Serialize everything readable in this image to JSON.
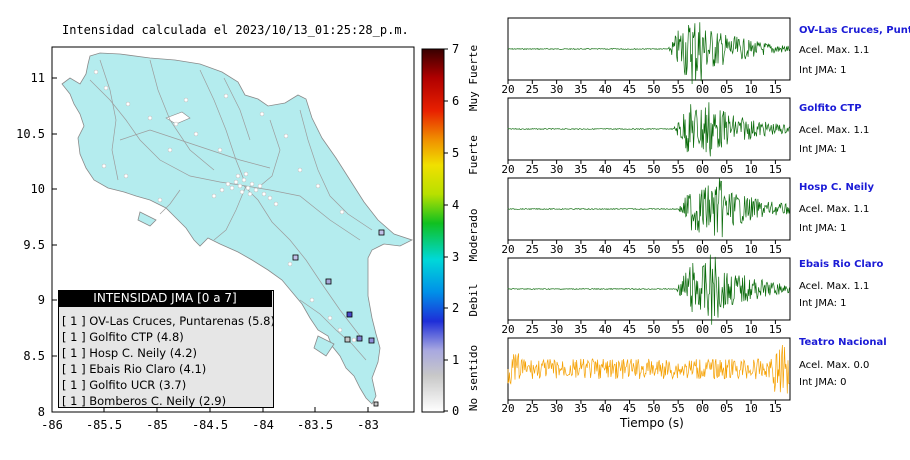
{
  "map": {
    "title": "Intensidad calculada el 2023/10/13_01:25:28_p.m.",
    "y_ticks": [
      "11",
      "10.5",
      "10",
      "9.5",
      "9",
      "8.5",
      "8"
    ],
    "x_ticks": [
      "-86",
      "-85.5",
      "-85",
      "-84.5",
      "-84",
      "-83.5",
      "-83"
    ],
    "land_color": "#b4ecee"
  },
  "colorbar": {
    "ticks": [
      "7",
      "6",
      "5",
      "4",
      "3",
      "2",
      "1",
      "0"
    ],
    "labels": [
      "Muy Fuerte",
      "Fuerte",
      "Moderado",
      "Debil",
      "No sentido"
    ]
  },
  "legend": {
    "title": "INTENSIDAD JMA [0 a 7]",
    "rows": [
      "[ 1 ] OV-Las Cruces, Puntarenas (5.8)",
      "[ 1 ] Golfito CTP (4.8)",
      "[ 1 ] Hosp C. Neily (4.2)",
      "[ 1 ] Ebais Rio Claro (4.1)",
      "[ 1 ] Golfito UCR (3.7)",
      "[ 1 ] Bomberos C. Neily (2.9)"
    ]
  },
  "waveforms": [
    {
      "name": "OV-Las Cruces, Puntar",
      "accel": "Acel. Max. 1.1",
      "jma": "Int JMA: 1",
      "color": "#0a6b0a",
      "ticks": [
        "20",
        "25",
        "30",
        "35",
        "40",
        "45",
        "50",
        "55",
        "00",
        "05",
        "10",
        "15"
      ]
    },
    {
      "name": "Golfito CTP",
      "accel": "Acel. Max. 1.1",
      "jma": "Int JMA: 1",
      "color": "#0a6b0a",
      "ticks": [
        "20",
        "25",
        "30",
        "35",
        "40",
        "45",
        "50",
        "55",
        "00",
        "05",
        "10",
        "15"
      ]
    },
    {
      "name": "Hosp C. Neily",
      "accel": "Acel. Max. 1.1",
      "jma": "Int JMA: 1",
      "color": "#0a6b0a",
      "ticks": [
        "20",
        "25",
        "30",
        "35",
        "40",
        "45",
        "50",
        "55",
        "00",
        "05",
        "10",
        "15"
      ]
    },
    {
      "name": "Ebais Rio Claro",
      "accel": "Acel. Max. 1.1",
      "jma": "Int JMA: 1",
      "color": "#0a6b0a",
      "ticks": [
        "20",
        "25",
        "30",
        "35",
        "40",
        "45",
        "50",
        "55",
        "00",
        "05",
        "10",
        "15"
      ]
    },
    {
      "name": "Teatro Nacional",
      "accel": "Acel. Max. 0.0",
      "jma": "Int JMA: 0",
      "color": "#f5a000",
      "ticks": [
        "20",
        "25",
        "30",
        "35",
        "40",
        "45",
        "50",
        "55",
        "00",
        "05",
        "10",
        "15"
      ]
    }
  ],
  "time_axis_label": "Tiempo (s)"
}
